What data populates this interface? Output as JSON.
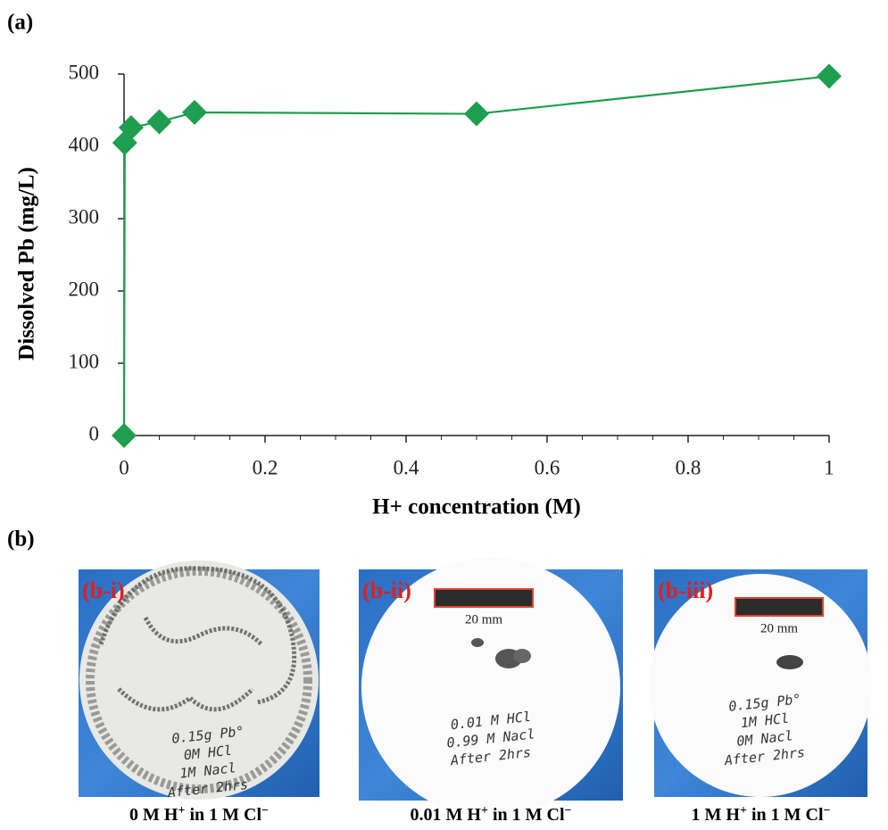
{
  "panel_a_label": "(a)",
  "chart_data": {
    "type": "line",
    "xlabel": "H+ concentration (M)",
    "ylabel": "Dissolved Pb (mg/L)",
    "x": [
      0,
      0.001,
      0.01,
      0.05,
      0.1,
      0.5,
      1
    ],
    "series": [
      {
        "color": "#1e9e4e",
        "values": [
          0,
          405,
          426,
          434,
          447,
          445,
          497
        ]
      }
    ],
    "xlim": [
      0,
      1
    ],
    "ylim": [
      0,
      500
    ],
    "xticks": [
      0,
      0.2,
      0.4,
      0.6,
      0.8,
      1
    ],
    "yticks": [
      0,
      100,
      200,
      300,
      400,
      500
    ]
  },
  "panel_b_label": "(b)",
  "photos": [
    {
      "label": "(b-i)",
      "notes": [
        "0.15g Pb°",
        "0M HCl",
        "1M Nacl",
        "After 2hrs"
      ],
      "caption": [
        "0 M H",
        "+",
        " in 1 M Cl",
        "−"
      ]
    },
    {
      "label": "(b-ii)",
      "scale": "20 mm",
      "notes": [
        "0.01 M HCl",
        "0.99 M Nacl",
        "After 2hrs"
      ],
      "caption": [
        "0.01 M H",
        "+",
        " in 1 M Cl",
        "−"
      ]
    },
    {
      "label": "(b-iii)",
      "scale": "20 mm",
      "notes": [
        "0.15g Pb°",
        "1M HCl",
        "0M Nacl",
        "After 2hrs"
      ],
      "caption": [
        "1 M H",
        "+",
        " in 1 M Cl",
        "−"
      ]
    }
  ]
}
